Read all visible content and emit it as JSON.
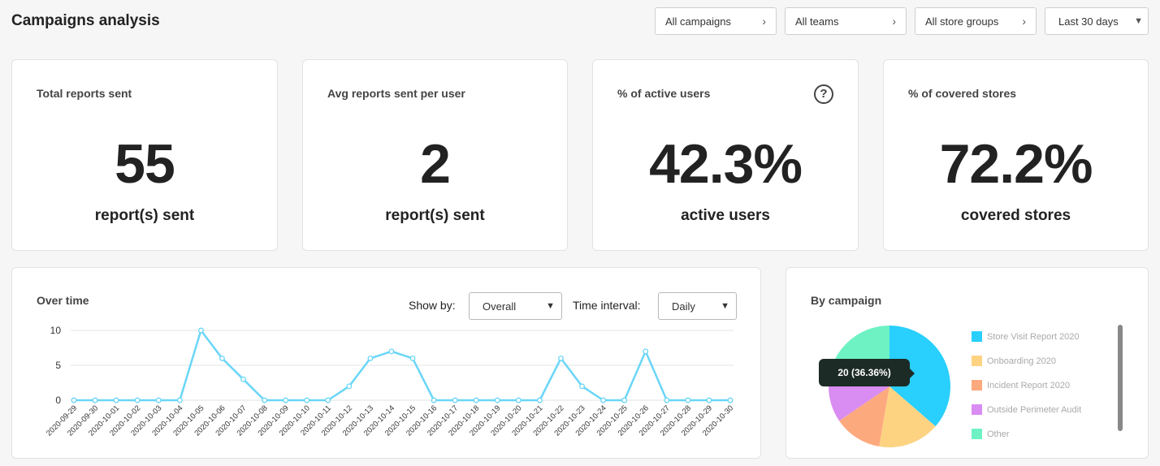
{
  "header": {
    "title": "Campaigns analysis",
    "filters": {
      "campaigns": "All campaigns",
      "teams": "All teams",
      "store_groups": "All store groups",
      "period": "Last 30 days"
    }
  },
  "kpis": [
    {
      "label": "Total reports sent",
      "value": "55",
      "unit": "report(s) sent"
    },
    {
      "label": "Avg reports sent per user",
      "value": "2",
      "unit": "report(s) sent"
    },
    {
      "label": "% of active users",
      "value": "42.3%",
      "unit": "active users",
      "help_icon": "question-circle-icon"
    },
    {
      "label": "% of covered stores",
      "value": "72.2%",
      "unit": "covered stores"
    }
  ],
  "over_time": {
    "title": "Over time",
    "show_by_label": "Show by:",
    "show_by_value": "Overall",
    "interval_label": "Time interval:",
    "interval_value": "Daily"
  },
  "by_campaign": {
    "title": "By campaign",
    "tooltip": "20 (36.36%)",
    "legend": [
      {
        "name": "Store Visit Report 2020",
        "color": "#29cffd"
      },
      {
        "name": "Onboarding 2020",
        "color": "#fdd382"
      },
      {
        "name": "Incident Report 2020",
        "color": "#fda97e"
      },
      {
        "name": "Outside Perimeter Audit",
        "color": "#d98cf2"
      },
      {
        "name": "Other",
        "color": "#6ef2c4"
      }
    ]
  },
  "chart_data": [
    {
      "type": "line",
      "x": [
        "2020-09-29",
        "2020-09-30",
        "2020-10-01",
        "2020-10-02",
        "2020-10-03",
        "2020-10-04",
        "2020-10-05",
        "2020-10-06",
        "2020-10-07",
        "2020-10-08",
        "2020-10-09",
        "2020-10-10",
        "2020-10-11",
        "2020-10-12",
        "2020-10-13",
        "2020-10-14",
        "2020-10-15",
        "2020-10-16",
        "2020-10-17",
        "2020-10-18",
        "2020-10-19",
        "2020-10-20",
        "2020-10-21",
        "2020-10-22",
        "2020-10-23",
        "2020-10-24",
        "2020-10-25",
        "2020-10-26",
        "2020-10-27",
        "2020-10-28",
        "2020-10-29",
        "2020-10-30"
      ],
      "series": [
        {
          "values": [
            0,
            0,
            0,
            0,
            0,
            0,
            10,
            6,
            3,
            0,
            0,
            0,
            0,
            2,
            6,
            7,
            6,
            0,
            0,
            0,
            0,
            0,
            0,
            6,
            2,
            0,
            0,
            7,
            0,
            0,
            0,
            0
          ],
          "color": "#6ad6f7"
        }
      ],
      "yticks": [
        0,
        5,
        10
      ],
      "ylim": [
        0,
        10
      ],
      "grid": true
    },
    {
      "type": "pie",
      "slices": [
        {
          "label": "Store Visit Report 2020",
          "value": 20,
          "color": "#29cffd"
        },
        {
          "label": "Onboarding 2020",
          "value": 9,
          "color": "#fdd382"
        },
        {
          "label": "Incident Report 2020",
          "value": 7,
          "color": "#fda97e"
        },
        {
          "label": "Outside Perimeter Audit",
          "value": 8,
          "color": "#d98cf2"
        },
        {
          "label": "Other",
          "value": 11,
          "color": "#6ef2c4"
        }
      ]
    }
  ]
}
